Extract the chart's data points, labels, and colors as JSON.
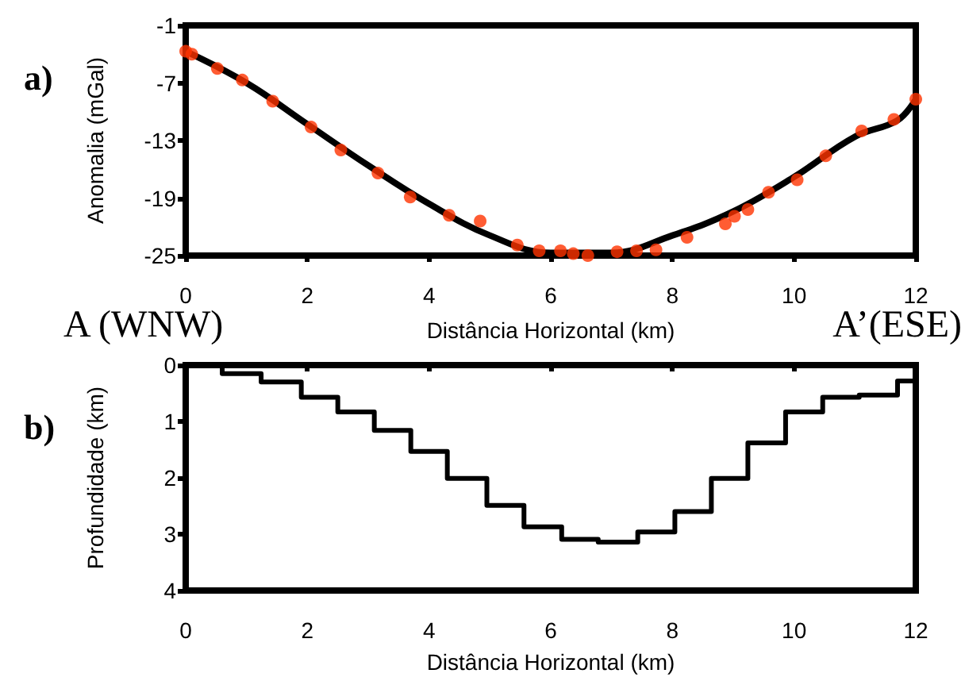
{
  "chart_data": [
    {
      "type": "scatter",
      "title": "a)",
      "xlabel": "Distância Horizontal (km)",
      "ylabel": "Anomalia (mGal)",
      "annotations": [
        "A (WNW)",
        "A’(ESE)"
      ],
      "xlim": [
        0,
        12
      ],
      "xticks": [
        0,
        2,
        4,
        6,
        8,
        10,
        12
      ],
      "ylim": [
        -25,
        -1
      ],
      "yticks": [
        -25,
        -19,
        -13,
        -7,
        -1
      ],
      "grid": false,
      "series": [
        {
          "type": "line",
          "color": "#000000",
          "line_style": "solid",
          "marker": "none",
          "x": [
            0,
            1,
            2,
            3,
            4,
            5,
            6,
            7,
            8,
            9,
            10,
            11,
            11.7,
            12
          ],
          "values": [
            -3.7,
            -7.0,
            -11.3,
            -15.6,
            -19.6,
            -22.9,
            -24.7,
            -24.7,
            -22.9,
            -20.4,
            -16.8,
            -12.6,
            -10.9,
            -8.7
          ]
        },
        {
          "color": "#ff3300",
          "marker": "circle",
          "x": [
            0,
            0.1,
            0.52,
            0.93,
            1.43,
            2.06,
            2.55,
            3.16,
            3.69,
            4.33,
            4.84,
            5.45,
            5.81,
            6.16,
            6.37,
            6.61,
            7.09,
            7.41,
            7.73,
            8.24,
            8.87,
            9.02,
            9.24,
            9.58,
            10.05,
            10.52,
            11.11,
            11.64,
            12
          ],
          "values": [
            -3.7,
            -4.0,
            -5.5,
            -6.7,
            -8.9,
            -11.6,
            -14.0,
            -16.4,
            -18.9,
            -20.8,
            -21.4,
            -23.9,
            -24.5,
            -24.5,
            -24.8,
            -25,
            -24.6,
            -24.5,
            -24.4,
            -23.1,
            -21.7,
            -20.9,
            -20.2,
            -18.4,
            -17.1,
            -14.6,
            -12.0,
            -10.8,
            -8.7
          ]
        }
      ]
    },
    {
      "type": "step",
      "title": "b)",
      "xlabel": "Distância Horizontal (km)",
      "ylabel": "Profundidade (km)",
      "xlim": [
        0,
        12
      ],
      "xticks": [
        0,
        2,
        4,
        6,
        8,
        10,
        12
      ],
      "ylim": [
        4,
        0
      ],
      "yticks": [
        0,
        1,
        2,
        3,
        4
      ],
      "grid": false,
      "series": [
        {
          "color": "#000000",
          "x": [
            0,
            0.6,
            1.24,
            1.9,
            2.5,
            3.1,
            3.7,
            4.3,
            4.95,
            5.56,
            6.18,
            6.78,
            7.43,
            8.04,
            8.64,
            9.24,
            9.86,
            10.47,
            11.07,
            11.7,
            12
          ],
          "values": [
            0,
            0.15,
            0.3,
            0.57,
            0.83,
            1.16,
            1.53,
            2.01,
            2.49,
            2.87,
            3.09,
            3.14,
            2.96,
            2.6,
            2.01,
            1.38,
            0.83,
            0.57,
            0.53,
            0.28,
            0.28
          ]
        }
      ]
    }
  ]
}
